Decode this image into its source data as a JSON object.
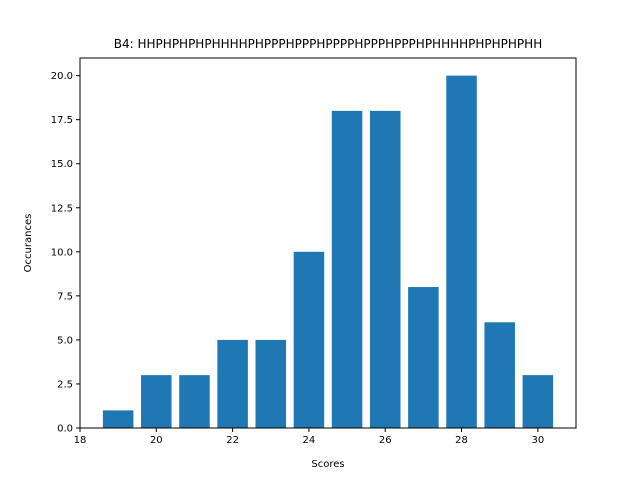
{
  "chart_data": {
    "type": "bar",
    "title": "B4: HHPHPHPHPHHHHPHPPPHPPPHPPPPHPPPHPPPHPHHHHPHPHPHPHH",
    "xlabel": "Scores",
    "ylabel": "Occurances",
    "x": [
      19,
      20,
      21,
      22,
      23,
      24,
      25,
      26,
      27,
      28,
      29,
      30
    ],
    "values": [
      1,
      3,
      3,
      5,
      5,
      10,
      18,
      18,
      8,
      20,
      6,
      3
    ],
    "xlim": [
      18,
      31
    ],
    "ylim": [
      0,
      21
    ],
    "xticks": [
      18,
      20,
      22,
      24,
      26,
      28,
      30
    ],
    "xtick_labels": [
      "18",
      "20",
      "22",
      "24",
      "26",
      "28",
      "30"
    ],
    "yticks": [
      0,
      2.5,
      5,
      7.5,
      10,
      12.5,
      15,
      17.5,
      20
    ],
    "ytick_labels": [
      "0.0",
      "2.5",
      "5.0",
      "7.5",
      "10.0",
      "12.5",
      "15.0",
      "17.5",
      "20.0"
    ],
    "bar_color": "#1f77b4",
    "grid": false,
    "legend": false
  }
}
